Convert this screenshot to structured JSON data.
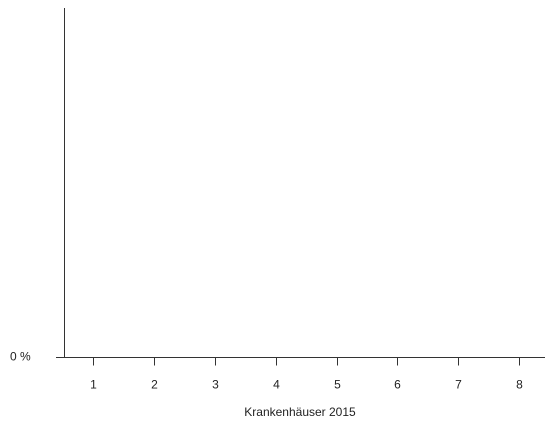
{
  "chart_data": {
    "type": "bar",
    "categories": [
      "1",
      "2",
      "3",
      "4",
      "5",
      "6",
      "7",
      "8"
    ],
    "yticks": [
      {
        "value": 0,
        "label": "0 %"
      }
    ],
    "xlabel": "Krankenhäuser 2015"
  }
}
